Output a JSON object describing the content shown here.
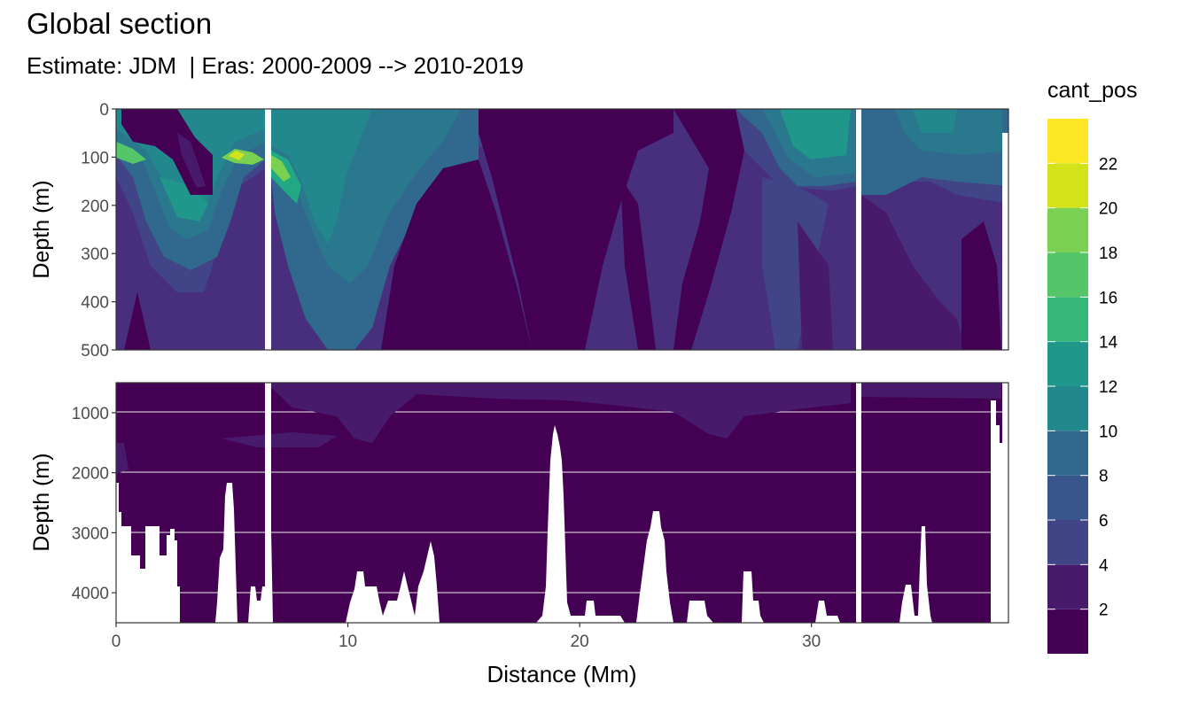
{
  "chart_data": {
    "type": "heatmap",
    "title": "Global section",
    "subtitle": "Estimate: JDM  | Eras: 2000-2009 --> 2010-2019",
    "xlabel": "Distance (Mm)",
    "ylabel": "Depth (m)",
    "xlim": [
      0,
      38.5
    ],
    "x_ticks": [
      0,
      10,
      20,
      30
    ],
    "panels": [
      {
        "name": "upper",
        "ylim": [
          0,
          500
        ],
        "y_ticks": [
          0,
          100,
          200,
          300,
          400,
          500
        ],
        "ylabel": "Depth (m)"
      },
      {
        "name": "lower",
        "ylim": [
          500,
          4500
        ],
        "y_ticks": [
          1000,
          2000,
          3000,
          4000
        ],
        "ylabel": "Depth (m)"
      }
    ],
    "colorbar": {
      "title": "cant_pos",
      "breaks": [
        0,
        2,
        4,
        6,
        8,
        10,
        12,
        14,
        16,
        18,
        20,
        22,
        24
      ],
      "tick_labels": [
        2,
        4,
        6,
        8,
        10,
        12,
        14,
        16,
        18,
        20,
        22
      ],
      "colors": [
        "#440154",
        "#481a6c",
        "#472f7d",
        "#414487",
        "#39568c",
        "#31688e",
        "#2a788e",
        "#23888e",
        "#1f988b",
        "#22a884",
        "#35b779",
        "#54c568",
        "#7ad151",
        "#a5db36",
        "#d2e21b",
        "#fde725"
      ]
    },
    "gaps_mm": [
      6.6,
      32.2
    ],
    "note": "Field: positive anthropogenic CO2 change along a global ocean section; highest values (~20-22) in thin near-surface layers near 5-7 Mm; deep panel mostly < 2 with white seafloor bathymetry."
  },
  "colors": {
    "c1": "#440154",
    "c2": "#481a6c",
    "c3": "#472f7d",
    "c4": "#414487",
    "c5": "#39568c",
    "c6": "#31688e",
    "c7": "#2a788e",
    "c8": "#23888e",
    "c9": "#1f988b",
    "c10": "#22a884",
    "c11": "#35b779",
    "c12": "#54c568",
    "c13": "#7ad151",
    "c14": "#a5db36",
    "c15": "#d2e21b",
    "c16": "#fde725"
  }
}
